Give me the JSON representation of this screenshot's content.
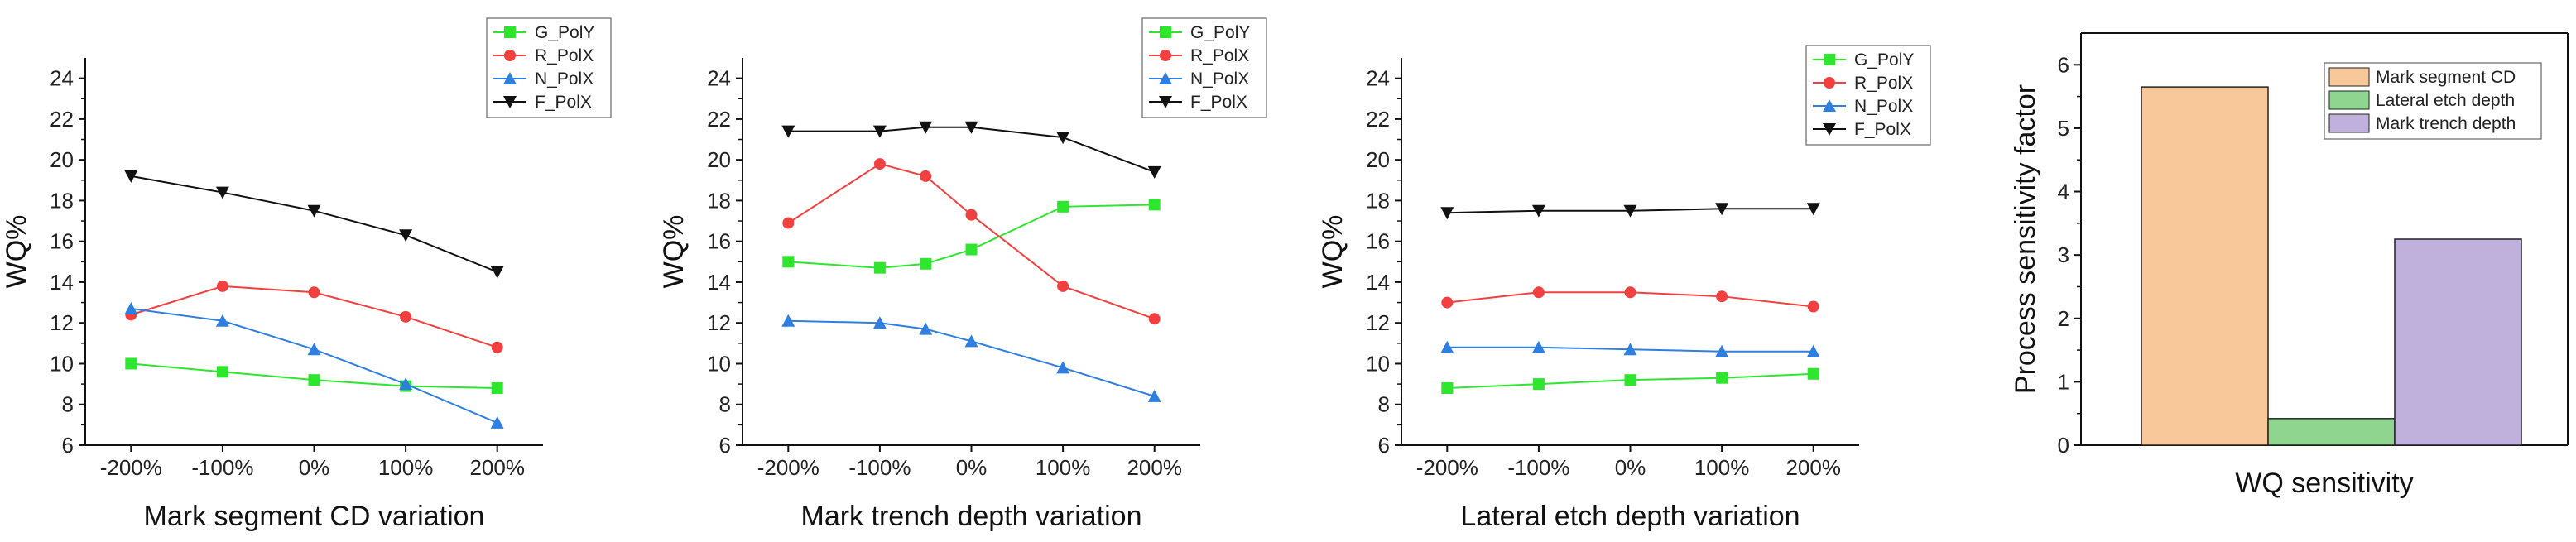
{
  "chart_data": [
    {
      "type": "line",
      "title": "",
      "xlabel": "Mark segment CD variation",
      "ylabel": "WQ%",
      "ylim": [
        6,
        25
      ],
      "yticks": [
        6,
        8,
        10,
        12,
        14,
        16,
        18,
        20,
        22,
        24
      ],
      "x": [
        -200,
        -100,
        0,
        100,
        200
      ],
      "xticks": [
        -200,
        -100,
        0,
        100,
        200
      ],
      "xtick_labels": [
        "-200%",
        "-100%",
        "0%",
        "100%",
        "200%"
      ],
      "xlim": [
        -250,
        250
      ],
      "legend": "top-right",
      "series": [
        {
          "name": "G_PolY",
          "color": "#2ee62e",
          "marker": "square",
          "values": [
            10.0,
            9.6,
            9.2,
            8.9,
            8.8
          ]
        },
        {
          "name": "R_PolX",
          "color": "#f24040",
          "marker": "circle",
          "values": [
            12.4,
            13.8,
            13.5,
            12.3,
            10.8
          ]
        },
        {
          "name": "N_PolX",
          "color": "#2f7fe0",
          "marker": "triangle-up",
          "values": [
            12.7,
            12.1,
            10.7,
            9.0,
            7.1
          ]
        },
        {
          "name": "F_PolX",
          "color": "#111111",
          "marker": "triangle-down",
          "values": [
            19.2,
            18.4,
            17.5,
            16.3,
            14.5
          ]
        }
      ]
    },
    {
      "type": "line",
      "title": "",
      "xlabel": "Mark trench depth variation",
      "ylabel": "WQ%",
      "ylim": [
        6,
        25
      ],
      "yticks": [
        6,
        8,
        10,
        12,
        14,
        16,
        18,
        20,
        22,
        24
      ],
      "x": [
        -200,
        -100,
        -50,
        0,
        100,
        200
      ],
      "xticks": [
        -200,
        -100,
        0,
        100,
        200
      ],
      "xtick_labels": [
        "-200%",
        "-100%",
        "0%",
        "100%",
        "200%"
      ],
      "xlim": [
        -250,
        250
      ],
      "legend": "top-right",
      "series": [
        {
          "name": "G_PolY",
          "color": "#2ee62e",
          "marker": "square",
          "values": [
            15.0,
            14.7,
            14.9,
            15.6,
            17.7,
            17.8
          ]
        },
        {
          "name": "R_PolX",
          "color": "#f24040",
          "marker": "circle",
          "values": [
            16.9,
            19.8,
            19.2,
            17.3,
            13.8,
            12.2
          ]
        },
        {
          "name": "N_PolX",
          "color": "#2f7fe0",
          "marker": "triangle-up",
          "values": [
            12.1,
            12.0,
            11.7,
            11.1,
            9.8,
            8.4
          ]
        },
        {
          "name": "F_PolX",
          "color": "#111111",
          "marker": "triangle-down",
          "values": [
            21.4,
            21.4,
            21.6,
            21.6,
            21.1,
            19.4
          ]
        }
      ]
    },
    {
      "type": "line",
      "title": "",
      "xlabel": "Lateral etch depth variation",
      "ylabel": "WQ%",
      "ylim": [
        6,
        25
      ],
      "yticks": [
        6,
        8,
        10,
        12,
        14,
        16,
        18,
        20,
        22,
        24
      ],
      "x": [
        -200,
        -100,
        0,
        100,
        200
      ],
      "xticks": [
        -200,
        -100,
        0,
        100,
        200
      ],
      "xtick_labels": [
        "-200%",
        "-100%",
        "0%",
        "100%",
        "200%"
      ],
      "xlim": [
        -250,
        250
      ],
      "legend": "top-right",
      "series": [
        {
          "name": "G_PolY",
          "color": "#2ee62e",
          "marker": "square",
          "values": [
            8.8,
            9.0,
            9.2,
            9.3,
            9.5
          ]
        },
        {
          "name": "R_PolX",
          "color": "#f24040",
          "marker": "circle",
          "values": [
            13.0,
            13.5,
            13.5,
            13.3,
            12.8
          ]
        },
        {
          "name": "N_PolX",
          "color": "#2f7fe0",
          "marker": "triangle-up",
          "values": [
            10.8,
            10.8,
            10.7,
            10.6,
            10.6
          ]
        },
        {
          "name": "F_PolX",
          "color": "#111111",
          "marker": "triangle-down",
          "values": [
            17.4,
            17.5,
            17.5,
            17.6,
            17.6
          ]
        }
      ]
    },
    {
      "type": "bar",
      "title": "",
      "xlabel": "WQ sensitivity",
      "ylabel": "Process sensitivity factor",
      "ylim": [
        0,
        6.5
      ],
      "yticks": [
        0,
        1,
        2,
        3,
        4,
        5,
        6
      ],
      "legend": "top-right",
      "series": [
        {
          "name": "Mark segment CD",
          "color": "#f9c89a",
          "values": [
            5.65
          ]
        },
        {
          "name": "Lateral etch depth",
          "color": "#8fd48f",
          "values": [
            0.42
          ]
        },
        {
          "name": "Mark trench depth",
          "color": "#c0b0dc",
          "values": [
            3.25
          ]
        }
      ]
    }
  ]
}
